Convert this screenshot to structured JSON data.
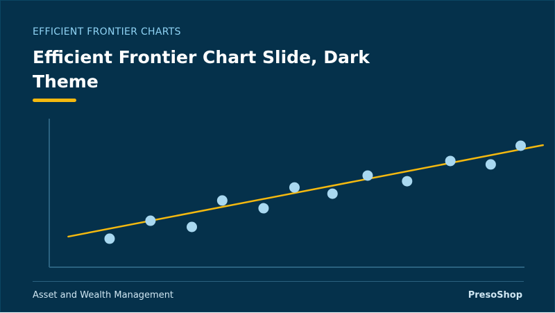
{
  "header": {
    "eyebrow": "EFFICIENT FRONTIER CHARTS",
    "title": "Efficient Frontier Chart Slide, Dark Theme"
  },
  "footer": {
    "left": "Asset and Wealth Management",
    "right": "PresoShop"
  },
  "colors": {
    "background": "#05314b",
    "accent": "#f5b90f",
    "point": "#a9d8f0",
    "axis": "#2b6280"
  },
  "chart_data": {
    "type": "scatter",
    "title": "",
    "xlabel": "",
    "ylabel": "",
    "grid": false,
    "xlim": [
      0,
      100
    ],
    "ylim": [
      0,
      100
    ],
    "points": [
      {
        "x": 12.7,
        "y": 19.2
      },
      {
        "x": 21.3,
        "y": 31.3
      },
      {
        "x": 30.0,
        "y": 27.1
      },
      {
        "x": 36.4,
        "y": 44.9
      },
      {
        "x": 45.1,
        "y": 39.7
      },
      {
        "x": 51.6,
        "y": 53.7
      },
      {
        "x": 59.6,
        "y": 49.5
      },
      {
        "x": 67.0,
        "y": 61.7
      },
      {
        "x": 75.3,
        "y": 57.9
      },
      {
        "x": 84.4,
        "y": 71.5
      },
      {
        "x": 92.9,
        "y": 69.2
      },
      {
        "x": 99.2,
        "y": 81.8
      }
    ],
    "trendline": {
      "x": [
        4.0,
        103.9
      ],
      "y": [
        20.6,
        82.2
      ]
    }
  }
}
